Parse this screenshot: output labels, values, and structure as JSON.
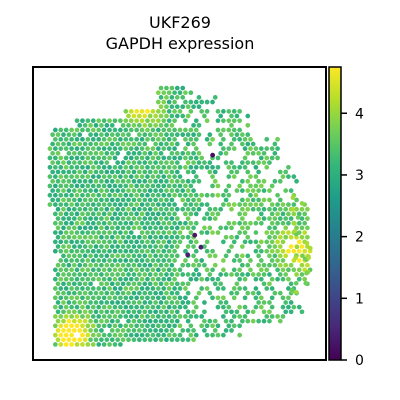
{
  "chart_data": {
    "type": "scatter",
    "title": "UKF269",
    "subtitle": "GAPDH expression",
    "xlabel": "",
    "ylabel": "",
    "grid": false,
    "legend": "none",
    "colorbar": {
      "position": "right",
      "min": 0,
      "max": 4.75,
      "ticks": [
        0,
        1,
        2,
        3,
        4
      ],
      "tick_labels": [
        "0",
        "1",
        "2",
        "3",
        "4"
      ],
      "colormap": "viridis"
    },
    "colormap_stops": [
      "#440154",
      "#482878",
      "#3e4989",
      "#31688e",
      "#26828e",
      "#1f9e89",
      "#35b779",
      "#6ece58",
      "#b5de2b",
      "#fde725"
    ],
    "low_expression_spots": [
      {
        "x": 0.613,
        "y": 0.301,
        "value": 0.2
      },
      {
        "x": 0.528,
        "y": 0.641,
        "value": 0.4
      },
      {
        "x": 0.573,
        "y": 0.615,
        "value": 0.4
      },
      {
        "x": 0.552,
        "y": 0.574,
        "value": 0.3
      }
    ],
    "high_expression_clusters": [
      {
        "x": 0.375,
        "y": 0.143,
        "value": 4.7
      },
      {
        "x": 0.123,
        "y": 0.915,
        "value": 4.6
      },
      {
        "x": 0.148,
        "y": 0.894,
        "value": 4.4
      },
      {
        "x": 0.888,
        "y": 0.606,
        "value": 4.2
      },
      {
        "x": 0.914,
        "y": 0.646,
        "value": 4.1
      }
    ],
    "tissue_value_range": [
      2.0,
      4.75
    ],
    "tissue_typical_value": 3.3
  }
}
